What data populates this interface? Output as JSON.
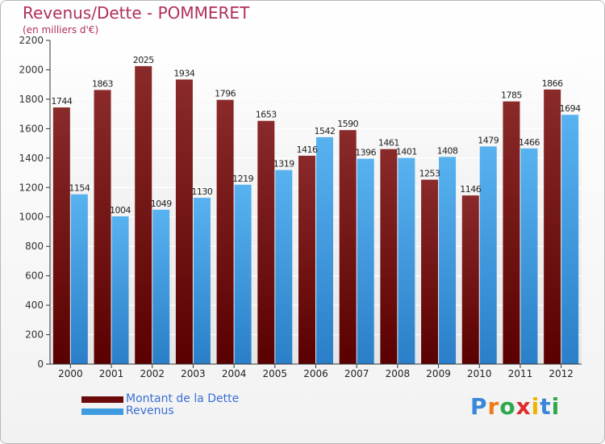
{
  "title": "Revenus/Dette - POMMERET",
  "subtitle": "(en milliers d'€)",
  "brand": "Proxiti",
  "colors": {
    "debt": "#6a0a0a",
    "revenue": "#3f9be0",
    "title": "#b0305a",
    "legend_text": "#3a6fd6"
  },
  "chart_data": {
    "type": "bar",
    "categories": [
      "2000",
      "2001",
      "2002",
      "2003",
      "2004",
      "2005",
      "2006",
      "2007",
      "2008",
      "2009",
      "2010",
      "2011",
      "2012"
    ],
    "series": [
      {
        "name": "Montant de la Dette",
        "values": [
          1744,
          1863,
          2025,
          1934,
          1796,
          1653,
          1416,
          1590,
          1461,
          1253,
          1146,
          1785,
          1866
        ]
      },
      {
        "name": "Revenus",
        "values": [
          1154,
          1004,
          1049,
          1130,
          1219,
          1319,
          1542,
          1396,
          1401,
          1408,
          1479,
          1466,
          1694
        ]
      }
    ],
    "ylim": [
      0,
      2200
    ],
    "yticks": [
      0,
      200,
      400,
      600,
      800,
      1000,
      1200,
      1400,
      1600,
      1800,
      2000,
      2200
    ],
    "grid": true,
    "legend": "bottom-left"
  }
}
